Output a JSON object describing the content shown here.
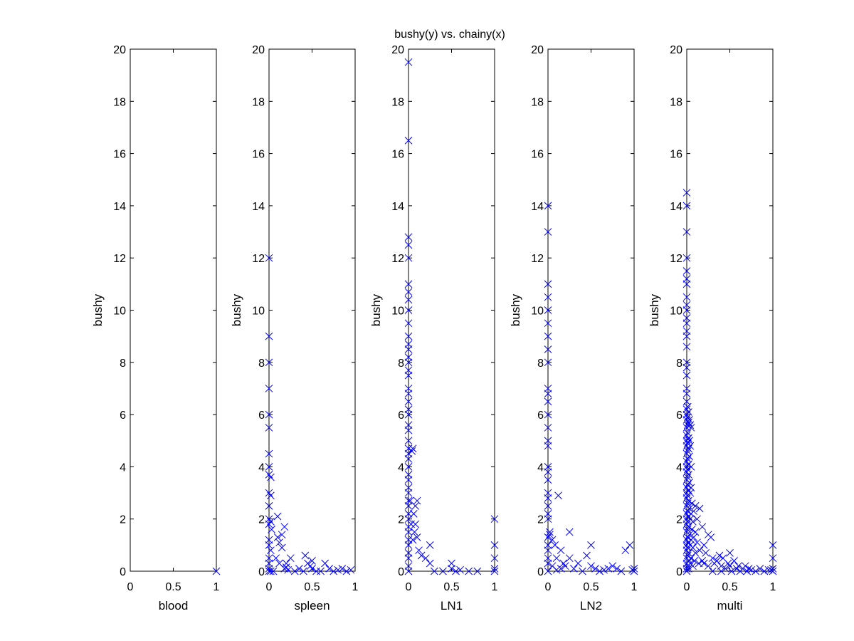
{
  "figure": {
    "title": "bushy(y) vs. chainy(x)"
  },
  "chart_data": [
    {
      "type": "scatter",
      "xlabel": "blood",
      "ylabel": "bushy",
      "xlim": [
        0,
        1
      ],
      "ylim": [
        0,
        20
      ],
      "xticks": [
        0,
        0.5,
        1
      ],
      "yticks": [
        0,
        2,
        4,
        6,
        8,
        10,
        12,
        14,
        16,
        18,
        20
      ],
      "grid": false,
      "marker": "x",
      "color": "#0000ff",
      "points": [
        [
          1.0,
          0.0
        ]
      ]
    },
    {
      "type": "scatter",
      "xlabel": "spleen",
      "ylabel": "bushy",
      "xlim": [
        0,
        1
      ],
      "ylim": [
        0,
        20
      ],
      "xticks": [
        0,
        0.5,
        1
      ],
      "yticks": [
        0,
        2,
        4,
        6,
        8,
        10,
        12,
        14,
        16,
        18,
        20
      ],
      "grid": false,
      "marker": "x",
      "color": "#0000ff",
      "points": [
        [
          0,
          12
        ],
        [
          0,
          9
        ],
        [
          0,
          8
        ],
        [
          0,
          7
        ],
        [
          0,
          6
        ],
        [
          0,
          5.5
        ],
        [
          0,
          4.5
        ],
        [
          0,
          4
        ],
        [
          0,
          3.7
        ],
        [
          0.02,
          3.6
        ],
        [
          0,
          3
        ],
        [
          0.02,
          2.9
        ],
        [
          0,
          2.5
        ],
        [
          0,
          2
        ],
        [
          0.02,
          1.9
        ],
        [
          0,
          1.8
        ],
        [
          0.03,
          1.6
        ],
        [
          0,
          1.2
        ],
        [
          0,
          1
        ],
        [
          0.02,
          0.8
        ],
        [
          0,
          0.5
        ],
        [
          0,
          0.3
        ],
        [
          0,
          0.1
        ],
        [
          0,
          0
        ],
        [
          0.02,
          0
        ],
        [
          0.05,
          0
        ],
        [
          0.1,
          2.1
        ],
        [
          0.12,
          1.1
        ],
        [
          0.15,
          0.9
        ],
        [
          0.1,
          1.3
        ],
        [
          0.18,
          1.7
        ],
        [
          0.15,
          1.4
        ],
        [
          0.2,
          0.3
        ],
        [
          0.18,
          0.1
        ],
        [
          0.25,
          0.5
        ],
        [
          0.22,
          0.05
        ],
        [
          0.3,
          0
        ],
        [
          0.35,
          0.1
        ],
        [
          0.4,
          0
        ],
        [
          0.42,
          0.6
        ],
        [
          0.45,
          0.3
        ],
        [
          0.48,
          0.2
        ],
        [
          0.5,
          0.1
        ],
        [
          0.5,
          0.4
        ],
        [
          0.55,
          0
        ],
        [
          0.6,
          0
        ],
        [
          0.65,
          0.3
        ],
        [
          0.7,
          0.1
        ],
        [
          0.75,
          0
        ],
        [
          0.8,
          0.05
        ],
        [
          0.85,
          0.1
        ],
        [
          0.9,
          0
        ],
        [
          0.95,
          0.05
        ],
        [
          0.2,
          0.15
        ],
        [
          0.08,
          0.5
        ],
        [
          0.12,
          0.3
        ]
      ]
    },
    {
      "type": "scatter",
      "xlabel": "LN1",
      "ylabel": "bushy",
      "xlim": [
        0,
        1
      ],
      "ylim": [
        0,
        20
      ],
      "xticks": [
        0,
        0.5,
        1
      ],
      "yticks": [
        0,
        2,
        4,
        6,
        8,
        10,
        12,
        14,
        16,
        18,
        20
      ],
      "grid": false,
      "marker": "x",
      "color": "#0000ff",
      "points": [
        [
          0,
          19.5
        ],
        [
          0,
          16.5
        ],
        [
          0,
          12.8
        ],
        [
          0,
          12.5
        ],
        [
          0,
          12
        ],
        [
          0,
          11
        ],
        [
          0,
          10.7
        ],
        [
          0,
          10.4
        ],
        [
          0,
          10
        ],
        [
          0,
          9.5
        ],
        [
          0,
          9
        ],
        [
          0,
          8.7
        ],
        [
          0,
          8.5
        ],
        [
          0,
          8.2
        ],
        [
          0,
          8
        ],
        [
          0,
          7.7
        ],
        [
          0,
          7.5
        ],
        [
          0,
          7
        ],
        [
          0,
          6.8
        ],
        [
          0,
          6.5
        ],
        [
          0,
          6.2
        ],
        [
          0,
          6
        ],
        [
          0,
          5.6
        ],
        [
          0,
          5.4
        ],
        [
          0,
          5
        ],
        [
          0,
          4.7
        ],
        [
          0,
          4.5
        ],
        [
          0,
          4.3
        ],
        [
          0,
          4
        ],
        [
          0,
          3.7
        ],
        [
          0,
          3.5
        ],
        [
          0,
          3.2
        ],
        [
          0,
          3
        ],
        [
          0,
          2.7
        ],
        [
          0,
          2.5
        ],
        [
          0,
          2.2
        ],
        [
          0,
          2
        ],
        [
          0,
          1.7
        ],
        [
          0,
          1.5
        ],
        [
          0,
          1.2
        ],
        [
          0,
          1
        ],
        [
          0,
          0.7
        ],
        [
          0,
          0.5
        ],
        [
          0,
          0.2
        ],
        [
          0,
          0
        ],
        [
          0.02,
          2.7
        ],
        [
          0.03,
          1.8
        ],
        [
          0.04,
          4.6
        ],
        [
          0.05,
          4.7
        ],
        [
          0.06,
          2.2
        ],
        [
          0.07,
          1.5
        ],
        [
          0.08,
          2.5
        ],
        [
          0.1,
          2.7
        ],
        [
          0.1,
          1.3
        ],
        [
          0.12,
          0.8
        ],
        [
          0.15,
          0.6
        ],
        [
          0.2,
          0.5
        ],
        [
          0.25,
          1
        ],
        [
          0.25,
          0.3
        ],
        [
          0.3,
          0
        ],
        [
          0.4,
          0
        ],
        [
          0.5,
          0.3
        ],
        [
          0.5,
          0.1
        ],
        [
          0.55,
          0
        ],
        [
          0.6,
          0.05
        ],
        [
          0.7,
          0
        ],
        [
          0.8,
          0
        ],
        [
          1,
          2
        ],
        [
          1,
          1
        ],
        [
          1,
          0.5
        ],
        [
          1,
          0.1
        ],
        [
          1,
          0
        ],
        [
          0.08,
          1.8
        ],
        [
          0.05,
          1.2
        ]
      ]
    },
    {
      "type": "scatter",
      "xlabel": "LN2",
      "ylabel": "bushy",
      "xlim": [
        0,
        1
      ],
      "ylim": [
        0,
        20
      ],
      "xticks": [
        0,
        0.5,
        1
      ],
      "yticks": [
        0,
        2,
        4,
        6,
        8,
        10,
        12,
        14,
        16,
        18,
        20
      ],
      "grid": false,
      "marker": "x",
      "color": "#0000ff",
      "points": [
        [
          0,
          14
        ],
        [
          0,
          13
        ],
        [
          0,
          11
        ],
        [
          0,
          10.5
        ],
        [
          0,
          10
        ],
        [
          0,
          9.5
        ],
        [
          0,
          9
        ],
        [
          0,
          8.5
        ],
        [
          0,
          8
        ],
        [
          0,
          7
        ],
        [
          0,
          6.8
        ],
        [
          0,
          6.5
        ],
        [
          0,
          6
        ],
        [
          0,
          5.5
        ],
        [
          0,
          5
        ],
        [
          0,
          4.8
        ],
        [
          0,
          4
        ],
        [
          0,
          3.8
        ],
        [
          0,
          3.5
        ],
        [
          0,
          3
        ],
        [
          0,
          2.8
        ],
        [
          0,
          2.5
        ],
        [
          0,
          2.2
        ],
        [
          0,
          2
        ],
        [
          0.02,
          1.5
        ],
        [
          0.02,
          1.4
        ],
        [
          0,
          1.3
        ],
        [
          0,
          1
        ],
        [
          0,
          0.8
        ],
        [
          0,
          0.5
        ],
        [
          0,
          0.3
        ],
        [
          0,
          0
        ],
        [
          0.05,
          1.2
        ],
        [
          0.08,
          1.0
        ],
        [
          0.1,
          0.5
        ],
        [
          0.12,
          2.9
        ],
        [
          0.15,
          0.8
        ],
        [
          0.18,
          0.3
        ],
        [
          0.2,
          0.2
        ],
        [
          0.25,
          1.5
        ],
        [
          0.25,
          0.5
        ],
        [
          0.3,
          0.1
        ],
        [
          0.35,
          0.3
        ],
        [
          0.4,
          0
        ],
        [
          0.45,
          0.6
        ],
        [
          0.5,
          1
        ],
        [
          0.5,
          0.2
        ],
        [
          0.55,
          0.1
        ],
        [
          0.6,
          0
        ],
        [
          0.65,
          0.05
        ],
        [
          0.7,
          0.1
        ],
        [
          0.75,
          0.2
        ],
        [
          0.8,
          0.1
        ],
        [
          0.85,
          0
        ],
        [
          0.9,
          0.8
        ],
        [
          0.95,
          1.0
        ],
        [
          1,
          0.1
        ],
        [
          1,
          0
        ],
        [
          0.98,
          0.05
        ],
        [
          0.05,
          0.2
        ],
        [
          0.1,
          0.05
        ],
        [
          0.15,
          0.1
        ]
      ]
    },
    {
      "type": "scatter",
      "xlabel": "multi",
      "ylabel": "bushy",
      "xlim": [
        0,
        1
      ],
      "ylim": [
        0,
        20
      ],
      "xticks": [
        0,
        0.5,
        1
      ],
      "yticks": [
        0,
        2,
        4,
        6,
        8,
        10,
        12,
        14,
        16,
        18,
        20
      ],
      "grid": false,
      "marker": "x",
      "color": "#0000ff",
      "points": [
        [
          0,
          14.5
        ],
        [
          0,
          14
        ],
        [
          0,
          13
        ],
        [
          0,
          12
        ],
        [
          0,
          11.5
        ],
        [
          0,
          11.2
        ],
        [
          0,
          11
        ],
        [
          0,
          10.5
        ],
        [
          0,
          10.2
        ],
        [
          0,
          10
        ],
        [
          0,
          9.7
        ],
        [
          0,
          9.5
        ],
        [
          0,
          9.2
        ],
        [
          0,
          9
        ],
        [
          0,
          8.6
        ],
        [
          0,
          8
        ],
        [
          0,
          7.8
        ],
        [
          0,
          7.5
        ],
        [
          0,
          7
        ],
        [
          0,
          6.8
        ],
        [
          0,
          6.5
        ],
        [
          0,
          6.2
        ],
        [
          0,
          6
        ],
        [
          0,
          5.8
        ],
        [
          0,
          5.5
        ],
        [
          0,
          5.2
        ],
        [
          0,
          5
        ],
        [
          0,
          4.8
        ],
        [
          0,
          4.5
        ],
        [
          0,
          4.2
        ],
        [
          0,
          4
        ],
        [
          0,
          3.8
        ],
        [
          0,
          3.5
        ],
        [
          0,
          3.2
        ],
        [
          0,
          3
        ],
        [
          0,
          2.8
        ],
        [
          0,
          2.5
        ],
        [
          0,
          2.2
        ],
        [
          0,
          2
        ],
        [
          0,
          1.8
        ],
        [
          0,
          1.5
        ],
        [
          0,
          1.2
        ],
        [
          0,
          1
        ],
        [
          0,
          0.8
        ],
        [
          0,
          0.5
        ],
        [
          0,
          0.3
        ],
        [
          0,
          0.1
        ],
        [
          0,
          0
        ],
        [
          0.01,
          6.3
        ],
        [
          0.01,
          5.9
        ],
        [
          0.01,
          5.6
        ],
        [
          0.01,
          5.3
        ],
        [
          0.01,
          4.9
        ],
        [
          0.01,
          4.6
        ],
        [
          0.01,
          4.3
        ],
        [
          0.01,
          3.9
        ],
        [
          0.01,
          3.6
        ],
        [
          0.01,
          3.3
        ],
        [
          0.01,
          2.9
        ],
        [
          0.01,
          2.6
        ],
        [
          0.01,
          2.3
        ],
        [
          0.01,
          1.9
        ],
        [
          0.01,
          1.6
        ],
        [
          0.01,
          1.3
        ],
        [
          0.01,
          0.9
        ],
        [
          0.01,
          0.6
        ],
        [
          0.01,
          0.2
        ],
        [
          0.02,
          6.1
        ],
        [
          0.02,
          5.7
        ],
        [
          0.02,
          5.1
        ],
        [
          0.02,
          4.7
        ],
        [
          0.02,
          4.1
        ],
        [
          0.02,
          3.7
        ],
        [
          0.02,
          3.1
        ],
        [
          0.02,
          2.7
        ],
        [
          0.02,
          2.1
        ],
        [
          0.02,
          1.7
        ],
        [
          0.02,
          1.1
        ],
        [
          0.02,
          0.7
        ],
        [
          0.02,
          0.1
        ],
        [
          0.03,
          5.8
        ],
        [
          0.03,
          5.0
        ],
        [
          0.03,
          4.4
        ],
        [
          0.03,
          3.4
        ],
        [
          0.03,
          2.4
        ],
        [
          0.03,
          1.4
        ],
        [
          0.03,
          0.4
        ],
        [
          0.04,
          5.6
        ],
        [
          0.04,
          4.8
        ],
        [
          0.04,
          3.0
        ],
        [
          0.04,
          2.0
        ],
        [
          0.04,
          1.0
        ],
        [
          0.04,
          0.3
        ],
        [
          0.05,
          5.5
        ],
        [
          0.05,
          4.0
        ],
        [
          0.05,
          3.2
        ],
        [
          0.05,
          2.2
        ],
        [
          0.05,
          1.2
        ],
        [
          0.05,
          0.5
        ],
        [
          0.06,
          2.6
        ],
        [
          0.06,
          1.6
        ],
        [
          0.07,
          1.9
        ],
        [
          0.07,
          0.9
        ],
        [
          0.08,
          2.3
        ],
        [
          0.08,
          1.3
        ],
        [
          0.1,
          2.5
        ],
        [
          0.1,
          1.5
        ],
        [
          0.1,
          0.7
        ],
        [
          0.12,
          2.0
        ],
        [
          0.12,
          1.1
        ],
        [
          0.15,
          2.4
        ],
        [
          0.15,
          0.8
        ],
        [
          0.18,
          1.7
        ],
        [
          0.18,
          0.4
        ],
        [
          0.2,
          1.0
        ],
        [
          0.2,
          0.3
        ],
        [
          0.22,
          0.7
        ],
        [
          0.25,
          1.4
        ],
        [
          0.25,
          0.2
        ],
        [
          0.28,
          1.3
        ],
        [
          0.3,
          0.5
        ],
        [
          0.3,
          0
        ],
        [
          0.32,
          0.3
        ],
        [
          0.35,
          0.4
        ],
        [
          0.38,
          0.6
        ],
        [
          0.4,
          0.2
        ],
        [
          0.4,
          0
        ],
        [
          0.42,
          0.5
        ],
        [
          0.45,
          0.1
        ],
        [
          0.48,
          0.3
        ],
        [
          0.5,
          0.7
        ],
        [
          0.5,
          0.2
        ],
        [
          0.52,
          0
        ],
        [
          0.55,
          0.4
        ],
        [
          0.58,
          0.1
        ],
        [
          0.6,
          0.2
        ],
        [
          0.62,
          0
        ],
        [
          0.65,
          0.1
        ],
        [
          0.68,
          0.2
        ],
        [
          0.7,
          0
        ],
        [
          0.72,
          0.1
        ],
        [
          0.75,
          0.05
        ],
        [
          0.8,
          0
        ],
        [
          0.85,
          0.1
        ],
        [
          0.9,
          0
        ],
        [
          0.95,
          0.05
        ],
        [
          1,
          1
        ],
        [
          1,
          0.5
        ],
        [
          1,
          0.1
        ],
        [
          1,
          0
        ],
        [
          0.98,
          0.05
        ],
        [
          0.07,
          0.2
        ],
        [
          0.09,
          0.4
        ],
        [
          0.14,
          0.3
        ]
      ]
    }
  ]
}
